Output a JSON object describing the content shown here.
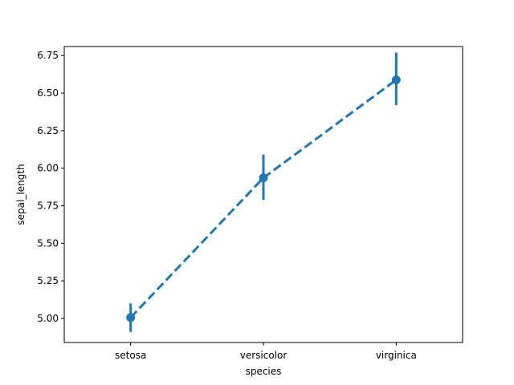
{
  "chart_data": {
    "type": "line",
    "style": "point-plot with error bars, dashed line",
    "title": "",
    "xlabel": "species",
    "ylabel": "sepal_length",
    "categories": [
      "setosa",
      "versicolor",
      "virginica"
    ],
    "series": [
      {
        "values": [
          5.006,
          5.936,
          6.588
        ],
        "error_low": [
          4.91,
          5.79,
          6.42
        ],
        "error_high": [
          5.1,
          6.09,
          6.77
        ],
        "color": "#1f77b4"
      }
    ],
    "ylim": [
      4.84,
      6.81
    ],
    "yticks": [
      5.0,
      5.25,
      5.5,
      5.75,
      6.0,
      6.25,
      6.5,
      6.75
    ],
    "ytick_labels": [
      "5.00",
      "5.25",
      "5.50",
      "5.75",
      "6.00",
      "6.25",
      "6.50",
      "6.75"
    ],
    "grid": false,
    "legend": "none"
  }
}
